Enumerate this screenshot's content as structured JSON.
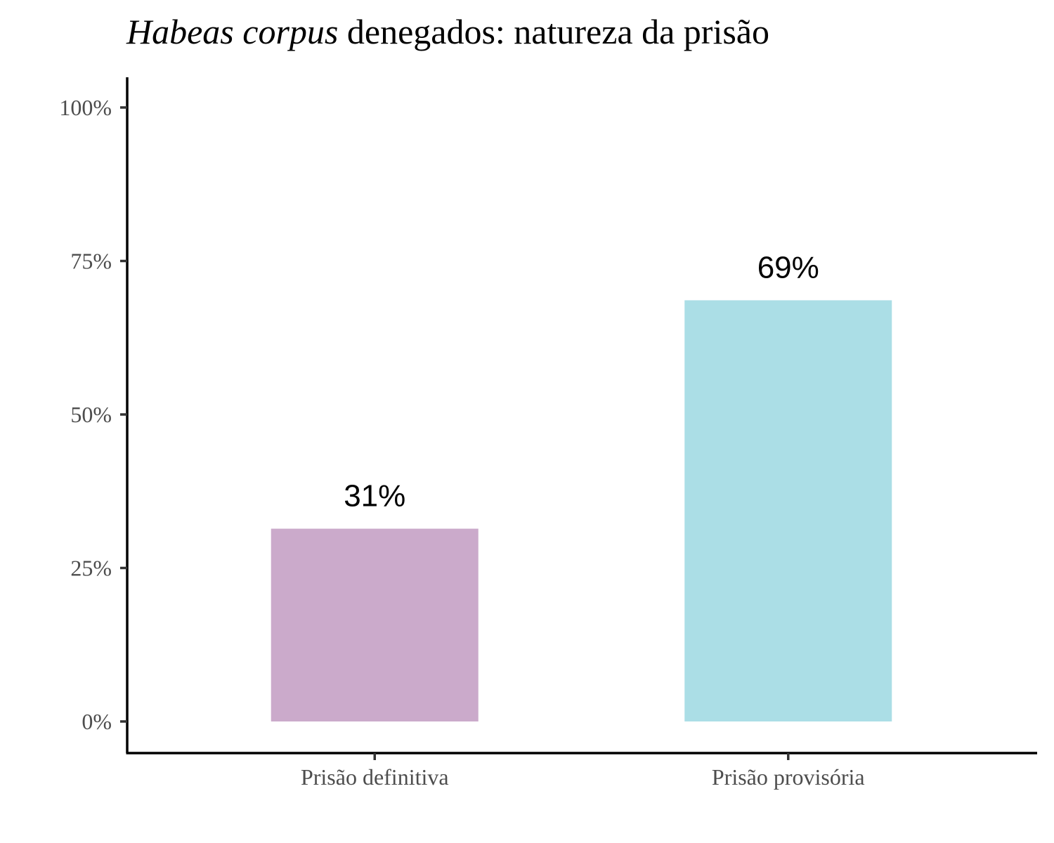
{
  "chart_data": {
    "type": "bar",
    "title_italic": "Habeas corpus",
    "title_rest": " denegados: natureza da prisão",
    "categories": [
      "Prisão definitiva",
      "Prisão provisória"
    ],
    "values": [
      31.4,
      68.6
    ],
    "value_labels": [
      "31%",
      "69%"
    ],
    "colors": [
      "#cbaacb",
      "#abdee6"
    ],
    "xlabel": "",
    "ylabel": "",
    "ylim": [
      0,
      100
    ],
    "y_ticks": [
      0,
      25,
      50,
      75,
      100
    ],
    "y_tick_labels": [
      "0%",
      "25%",
      "50%",
      "75%",
      "100%"
    ],
    "grid": false,
    "legend": "none"
  }
}
